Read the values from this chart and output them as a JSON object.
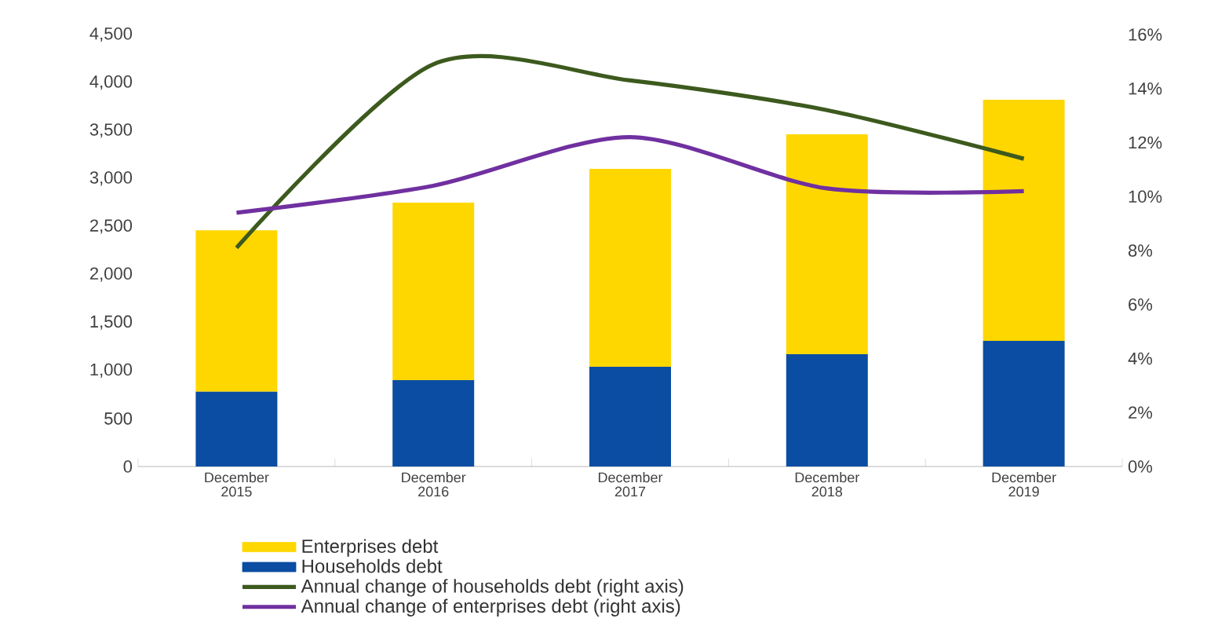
{
  "chart_data": {
    "type": "bar",
    "stacked": true,
    "categories": [
      "December 2015",
      "December 2016",
      "December 2017",
      "December 2018",
      "December 2019"
    ],
    "series": [
      {
        "name": "Households debt",
        "color": "#0a4da2",
        "values": [
          780,
          900,
          1040,
          1170,
          1310
        ]
      },
      {
        "name": "Enterprises debt",
        "color": "#ffd700",
        "values": [
          1680,
          1850,
          2060,
          2290,
          2510
        ]
      },
      {
        "name": "Annual change of households debt (right axis)",
        "type": "line",
        "axis": "y2",
        "color": "#3d5a1e",
        "values": [
          8.1,
          14.9,
          14.3,
          13.2,
          11.4
        ]
      },
      {
        "name": "Annual change of enterprises debt (right axis)",
        "type": "line",
        "axis": "y2",
        "color": "#7030a0",
        "values": [
          9.4,
          10.4,
          12.2,
          10.3,
          10.2
        ]
      }
    ],
    "ylim": [
      0,
      4500
    ],
    "yticks": [
      0,
      500,
      {
        "value": 1000,
        "label": "1,000"
      },
      {
        "value": 1500,
        "label": "1,500"
      },
      {
        "value": 2000,
        "label": "2,000"
      },
      {
        "value": 2500,
        "label": "2,500"
      },
      {
        "value": 3000,
        "label": "3,000"
      },
      {
        "value": 3500,
        "label": "3,500"
      },
      {
        "value": 4000,
        "label": "4,000"
      },
      {
        "value": 4500,
        "label": "4,500"
      }
    ],
    "y2lim": [
      0,
      16
    ],
    "y2ticks": [
      {
        "value": 0,
        "label": "0%"
      },
      {
        "value": 2,
        "label": "2%"
      },
      {
        "value": 4,
        "label": "4%"
      },
      {
        "value": 6,
        "label": "6%"
      },
      {
        "value": 8,
        "label": "8%"
      },
      {
        "value": 10,
        "label": "10%"
      },
      {
        "value": 12,
        "label": "12%"
      },
      {
        "value": 14,
        "label": "14%"
      },
      {
        "value": 16,
        "label": "16%"
      }
    ],
    "legend": "bottom",
    "grid": false,
    "marker": "none",
    "line_style": "solid"
  }
}
